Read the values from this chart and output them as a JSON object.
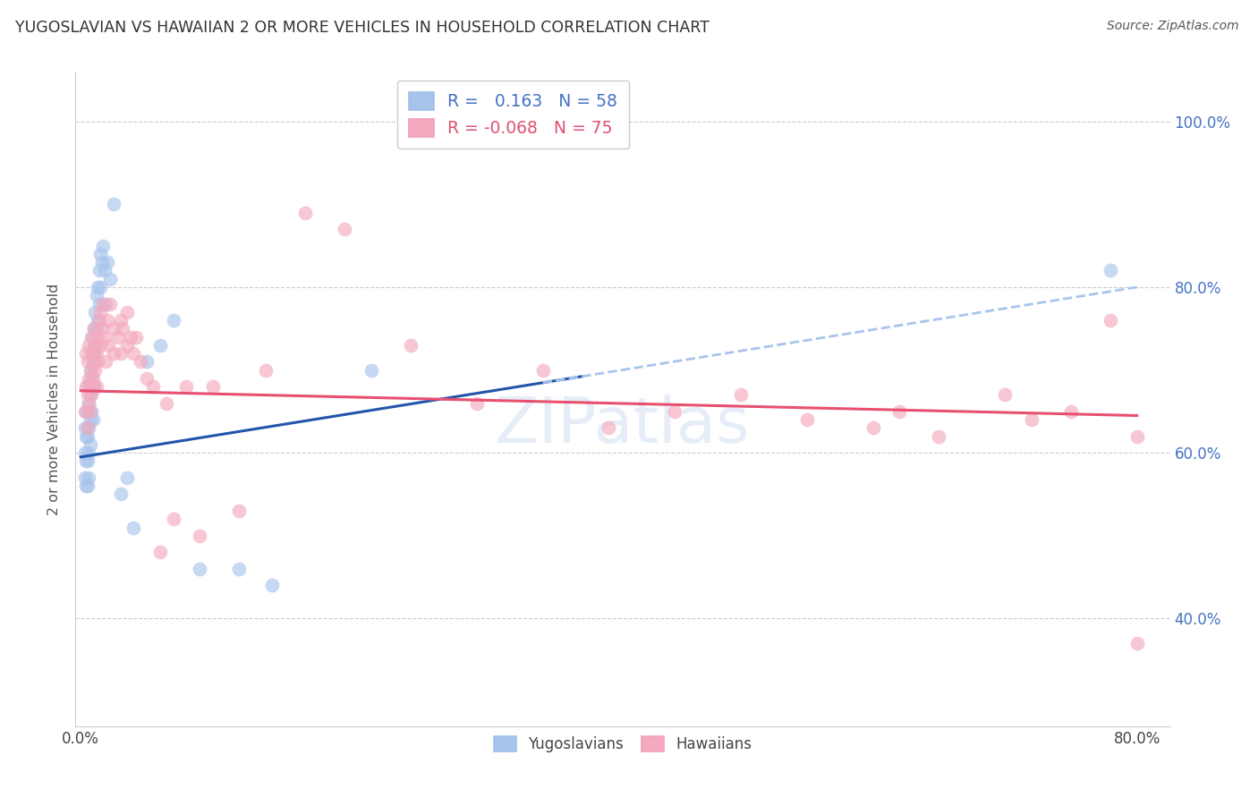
{
  "title": "YUGOSLAVIAN VS HAWAIIAN 2 OR MORE VEHICLES IN HOUSEHOLD CORRELATION CHART",
  "source": "Source: ZipAtlas.com",
  "ylabel": "2 or more Vehicles in Household",
  "legend_r_yugo": "0.163",
  "legend_n_yugo": "58",
  "legend_r_haw": "-0.068",
  "legend_n_haw": "75",
  "blue_color": "#A8C4EC",
  "pink_color": "#F4AABE",
  "blue_line_color": "#2255AA",
  "pink_line_color": "#E85070",
  "blue_dashed_color": "#A8C4EC",
  "grid_color": "#CCCCCC",
  "xlim": [
    -0.004,
    0.825
  ],
  "ylim": [
    0.27,
    1.06
  ],
  "x_ticks": [
    0.0,
    0.2,
    0.4,
    0.6,
    0.8
  ],
  "y_ticks": [
    0.4,
    0.6,
    0.8,
    1.0
  ],
  "yugo_x": [
    0.003,
    0.003,
    0.003,
    0.004,
    0.004,
    0.004,
    0.004,
    0.005,
    0.005,
    0.005,
    0.005,
    0.005,
    0.006,
    0.006,
    0.006,
    0.006,
    0.007,
    0.007,
    0.007,
    0.007,
    0.008,
    0.008,
    0.008,
    0.009,
    0.009,
    0.009,
    0.009,
    0.01,
    0.01,
    0.01,
    0.011,
    0.011,
    0.012,
    0.012,
    0.013,
    0.013,
    0.014,
    0.014,
    0.015,
    0.015,
    0.016,
    0.017,
    0.018,
    0.019,
    0.02,
    0.022,
    0.025,
    0.03,
    0.035,
    0.04,
    0.05,
    0.06,
    0.07,
    0.09,
    0.12,
    0.145,
    0.22,
    0.78
  ],
  "yugo_y": [
    0.63,
    0.6,
    0.57,
    0.65,
    0.62,
    0.59,
    0.56,
    0.68,
    0.65,
    0.62,
    0.59,
    0.56,
    0.66,
    0.63,
    0.6,
    0.57,
    0.7,
    0.67,
    0.64,
    0.61,
    0.72,
    0.69,
    0.65,
    0.74,
    0.71,
    0.68,
    0.64,
    0.75,
    0.72,
    0.68,
    0.77,
    0.73,
    0.79,
    0.75,
    0.8,
    0.76,
    0.82,
    0.78,
    0.84,
    0.8,
    0.83,
    0.85,
    0.82,
    0.78,
    0.83,
    0.81,
    0.9,
    0.55,
    0.57,
    0.51,
    0.71,
    0.73,
    0.76,
    0.46,
    0.46,
    0.44,
    0.7,
    0.82
  ],
  "haw_x": [
    0.003,
    0.004,
    0.004,
    0.005,
    0.005,
    0.005,
    0.006,
    0.006,
    0.006,
    0.007,
    0.007,
    0.008,
    0.008,
    0.008,
    0.009,
    0.009,
    0.01,
    0.01,
    0.01,
    0.011,
    0.011,
    0.012,
    0.012,
    0.013,
    0.013,
    0.014,
    0.015,
    0.015,
    0.016,
    0.017,
    0.018,
    0.019,
    0.02,
    0.021,
    0.022,
    0.025,
    0.025,
    0.028,
    0.03,
    0.03,
    0.032,
    0.035,
    0.035,
    0.038,
    0.04,
    0.042,
    0.045,
    0.05,
    0.055,
    0.06,
    0.065,
    0.07,
    0.08,
    0.09,
    0.1,
    0.12,
    0.14,
    0.17,
    0.2,
    0.25,
    0.3,
    0.35,
    0.4,
    0.45,
    0.5,
    0.55,
    0.6,
    0.62,
    0.65,
    0.7,
    0.72,
    0.75,
    0.78,
    0.8,
    0.8
  ],
  "haw_y": [
    0.65,
    0.68,
    0.72,
    0.63,
    0.67,
    0.71,
    0.66,
    0.69,
    0.73,
    0.65,
    0.68,
    0.67,
    0.7,
    0.74,
    0.69,
    0.72,
    0.68,
    0.71,
    0.75,
    0.7,
    0.73,
    0.72,
    0.68,
    0.74,
    0.71,
    0.76,
    0.73,
    0.77,
    0.75,
    0.78,
    0.74,
    0.71,
    0.76,
    0.73,
    0.78,
    0.75,
    0.72,
    0.74,
    0.76,
    0.72,
    0.75,
    0.73,
    0.77,
    0.74,
    0.72,
    0.74,
    0.71,
    0.69,
    0.68,
    0.48,
    0.66,
    0.52,
    0.68,
    0.5,
    0.68,
    0.53,
    0.7,
    0.89,
    0.87,
    0.73,
    0.66,
    0.7,
    0.63,
    0.65,
    0.67,
    0.64,
    0.63,
    0.65,
    0.62,
    0.67,
    0.64,
    0.65,
    0.76,
    0.62,
    0.37
  ]
}
